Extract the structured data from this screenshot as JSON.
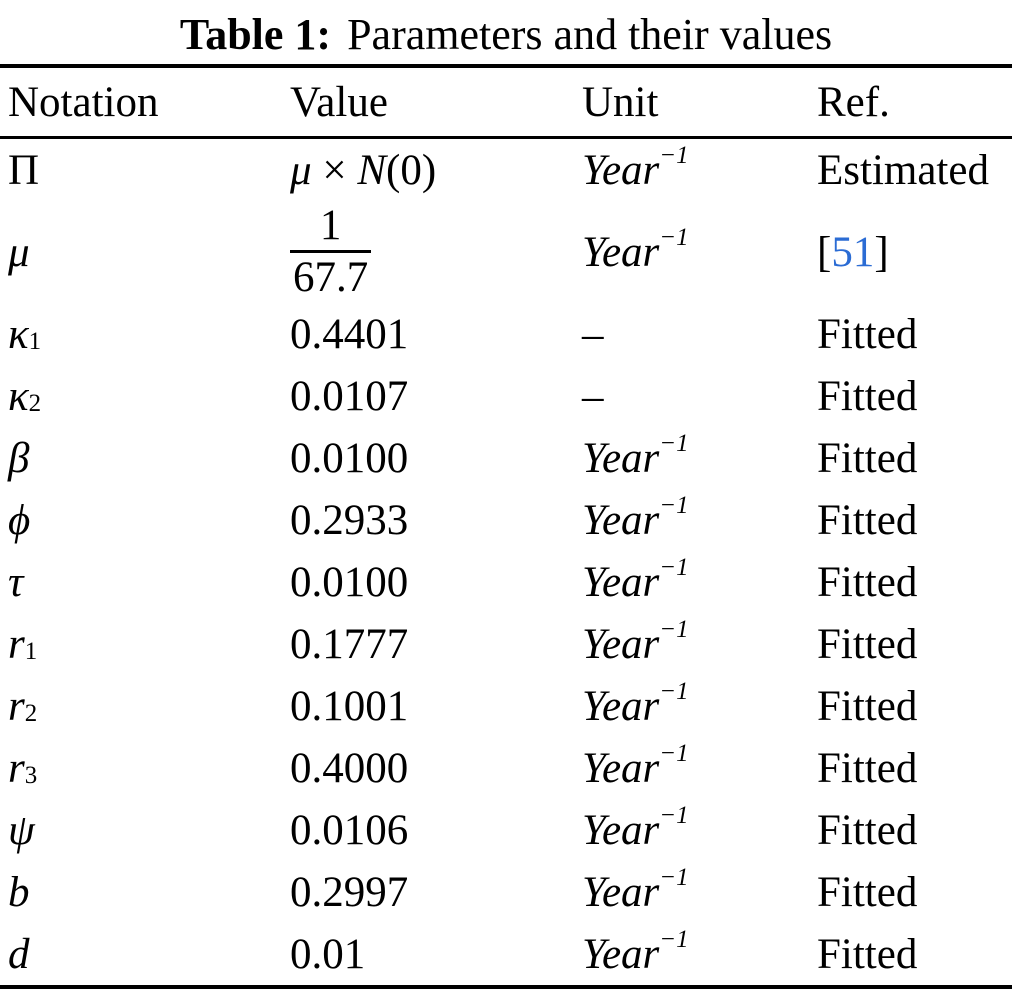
{
  "caption": {
    "label": "Table 1:",
    "text": "Parameters and their values"
  },
  "columns": [
    "Notation",
    "Value",
    "Unit",
    "Ref."
  ],
  "rows": [
    {
      "notation": "Π",
      "value_mu": "μ",
      "value_times": " × ",
      "value_n": "N",
      "value_arg": "(0)",
      "unit": "Year",
      "unit_sup": "−1",
      "ref": "Estimated"
    },
    {
      "notation": "μ",
      "frac_num": "1",
      "frac_den": "67.7",
      "unit": "Year",
      "unit_sup": "−1",
      "ref_open": "[",
      "ref_num": "51",
      "ref_close": "]"
    },
    {
      "notation": "κ",
      "notation_sub": "1",
      "value": "0.4401",
      "unit": "–",
      "ref": "Fitted"
    },
    {
      "notation": "κ",
      "notation_sub": "2",
      "value": "0.0107",
      "unit": "–",
      "ref": "Fitted"
    },
    {
      "notation": "β",
      "value": "0.0100",
      "unit": "Year",
      "unit_sup": "−1",
      "ref": "Fitted"
    },
    {
      "notation": "ϕ",
      "value": "0.2933",
      "unit": "Year",
      "unit_sup": "−1",
      "ref": "Fitted"
    },
    {
      "notation": "τ",
      "value": "0.0100",
      "unit": "Year",
      "unit_sup": "−1",
      "ref": "Fitted"
    },
    {
      "notation": "r",
      "notation_sub": "1",
      "value": "0.1777",
      "unit": "Year",
      "unit_sup": "−1",
      "ref": "Fitted"
    },
    {
      "notation": "r",
      "notation_sub": "2",
      "value": "0.1001",
      "unit": "Year",
      "unit_sup": "−1",
      "ref": "Fitted"
    },
    {
      "notation": "r",
      "notation_sub": "3",
      "value": "0.4000",
      "unit": "Year",
      "unit_sup": "−1",
      "ref": "Fitted"
    },
    {
      "notation": "ψ",
      "value": "0.0106",
      "unit": "Year",
      "unit_sup": "−1",
      "ref": "Fitted"
    },
    {
      "notation": "b",
      "value": "0.2997",
      "unit": "Year",
      "unit_sup": "−1",
      "ref": "Fitted"
    },
    {
      "notation": "d",
      "value": "0.01",
      "unit": "Year",
      "unit_sup": "−1",
      "ref": "Fitted"
    }
  ],
  "colors": {
    "text": "#000000",
    "background": "#ffffff",
    "citation_link": "#2b6cd4"
  }
}
